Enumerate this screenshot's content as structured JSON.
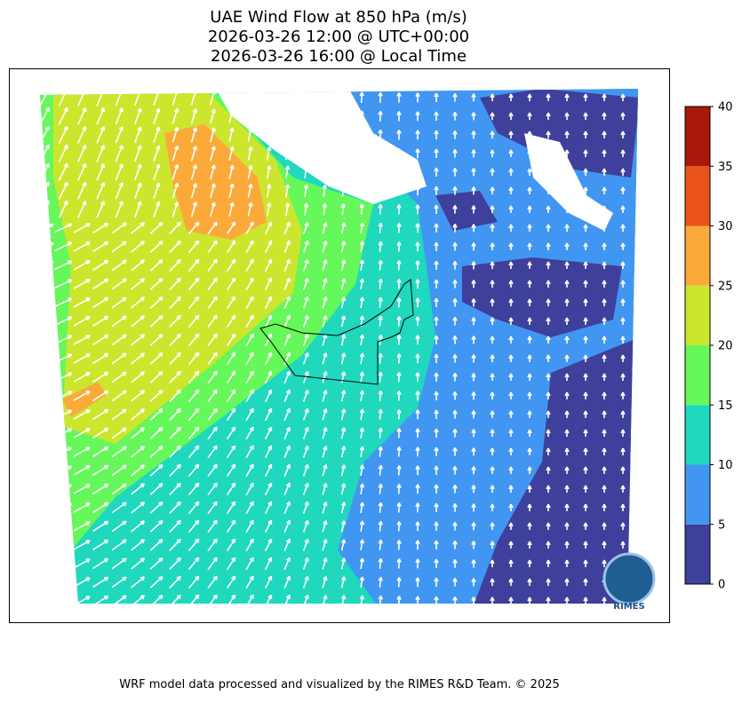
{
  "header": {
    "title_lines": [
      "UAE Wind Flow at 850 hPa (m/s)",
      "2026-03-26 12:00 @ UTC+00:00",
      "2026-03-26 16:00 @ Local Time"
    ]
  },
  "colorbar": {
    "ticks": [
      0,
      5,
      10,
      15,
      20,
      25,
      30,
      35,
      40
    ],
    "colors": [
      "#3f3f9c",
      "#4196f2",
      "#1fd8be",
      "#66f75a",
      "#cce62e",
      "#fbaa3a",
      "#ea521b",
      "#a8190c"
    ]
  },
  "logo": {
    "label": "RIMES"
  },
  "footer": {
    "text": "WRF model data processed and visualized by the RIMES R&D Team. © 2025"
  }
}
